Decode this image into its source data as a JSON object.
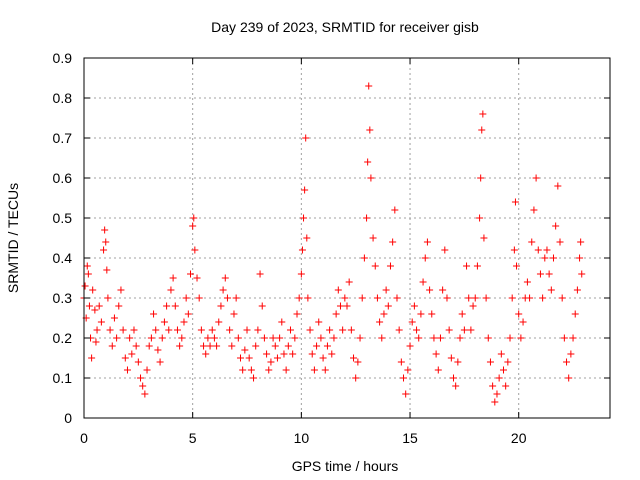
{
  "chart_data": {
    "type": "scatter",
    "title": "Day 239 of 2023, SRMTID for receiver gisb",
    "xlabel": "GPS time / hours",
    "ylabel": "SRMTID / TECUs",
    "xlim": [
      0,
      24.2
    ],
    "ylim": [
      0,
      0.9
    ],
    "x_ticks": [
      0,
      5,
      10,
      15,
      20
    ],
    "x_tick_labels": [
      "0",
      "5",
      "10",
      "15",
      "20"
    ],
    "y_ticks": [
      0,
      0.1,
      0.2,
      0.3,
      0.4,
      0.5,
      0.6,
      0.7,
      0.8,
      0.9
    ],
    "y_tick_labels": [
      "0",
      "0.1",
      "0.2",
      "0.3",
      "0.4",
      "0.5",
      "0.6",
      "0.7",
      "0.8",
      "0.9"
    ],
    "grid": true,
    "marker": "+",
    "marker_color": "#ff0000",
    "series": [
      {
        "name": "SRMTID",
        "color": "#ff0000",
        "points": [
          [
            0.0,
            0.3
          ],
          [
            0.05,
            0.33
          ],
          [
            0.1,
            0.25
          ],
          [
            0.15,
            0.38
          ],
          [
            0.2,
            0.36
          ],
          [
            0.25,
            0.28
          ],
          [
            0.3,
            0.2
          ],
          [
            0.35,
            0.15
          ],
          [
            0.4,
            0.32
          ],
          [
            0.5,
            0.27
          ],
          [
            0.55,
            0.19
          ],
          [
            0.6,
            0.22
          ],
          [
            0.7,
            0.28
          ],
          [
            0.8,
            0.24
          ],
          [
            0.9,
            0.42
          ],
          [
            0.95,
            0.47
          ],
          [
            1.0,
            0.44
          ],
          [
            1.05,
            0.37
          ],
          [
            1.1,
            0.3
          ],
          [
            1.2,
            0.22
          ],
          [
            1.3,
            0.18
          ],
          [
            1.4,
            0.25
          ],
          [
            1.5,
            0.2
          ],
          [
            1.6,
            0.28
          ],
          [
            1.7,
            0.32
          ],
          [
            1.8,
            0.22
          ],
          [
            1.9,
            0.15
          ],
          [
            2.0,
            0.12
          ],
          [
            2.1,
            0.2
          ],
          [
            2.2,
            0.16
          ],
          [
            2.3,
            0.22
          ],
          [
            2.4,
            0.18
          ],
          [
            2.5,
            0.14
          ],
          [
            2.6,
            0.1
          ],
          [
            2.7,
            0.08
          ],
          [
            2.8,
            0.06
          ],
          [
            2.9,
            0.12
          ],
          [
            3.0,
            0.18
          ],
          [
            3.1,
            0.2
          ],
          [
            3.2,
            0.26
          ],
          [
            3.3,
            0.22
          ],
          [
            3.4,
            0.17
          ],
          [
            3.5,
            0.14
          ],
          [
            3.6,
            0.2
          ],
          [
            3.7,
            0.24
          ],
          [
            3.8,
            0.28
          ],
          [
            3.9,
            0.22
          ],
          [
            4.0,
            0.32
          ],
          [
            4.1,
            0.35
          ],
          [
            4.2,
            0.28
          ],
          [
            4.3,
            0.22
          ],
          [
            4.4,
            0.18
          ],
          [
            4.5,
            0.2
          ],
          [
            4.6,
            0.24
          ],
          [
            4.7,
            0.3
          ],
          [
            4.8,
            0.26
          ],
          [
            4.9,
            0.36
          ],
          [
            5.0,
            0.48
          ],
          [
            5.05,
            0.5
          ],
          [
            5.1,
            0.42
          ],
          [
            5.2,
            0.35
          ],
          [
            5.3,
            0.3
          ],
          [
            5.4,
            0.22
          ],
          [
            5.5,
            0.18
          ],
          [
            5.6,
            0.16
          ],
          [
            5.7,
            0.2
          ],
          [
            5.8,
            0.18
          ],
          [
            5.9,
            0.22
          ],
          [
            6.0,
            0.2
          ],
          [
            6.1,
            0.18
          ],
          [
            6.2,
            0.24
          ],
          [
            6.3,
            0.28
          ],
          [
            6.4,
            0.32
          ],
          [
            6.5,
            0.35
          ],
          [
            6.6,
            0.3
          ],
          [
            6.7,
            0.22
          ],
          [
            6.8,
            0.18
          ],
          [
            6.9,
            0.26
          ],
          [
            7.0,
            0.3
          ],
          [
            7.1,
            0.2
          ],
          [
            7.2,
            0.15
          ],
          [
            7.3,
            0.12
          ],
          [
            7.4,
            0.17
          ],
          [
            7.5,
            0.22
          ],
          [
            7.6,
            0.15
          ],
          [
            7.7,
            0.12
          ],
          [
            7.8,
            0.1
          ],
          [
            7.9,
            0.18
          ],
          [
            8.0,
            0.22
          ],
          [
            8.1,
            0.36
          ],
          [
            8.2,
            0.28
          ],
          [
            8.3,
            0.2
          ],
          [
            8.4,
            0.16
          ],
          [
            8.5,
            0.12
          ],
          [
            8.6,
            0.14
          ],
          [
            8.7,
            0.2
          ],
          [
            8.8,
            0.18
          ],
          [
            8.9,
            0.15
          ],
          [
            9.0,
            0.2
          ],
          [
            9.1,
            0.24
          ],
          [
            9.2,
            0.16
          ],
          [
            9.3,
            0.12
          ],
          [
            9.4,
            0.18
          ],
          [
            9.5,
            0.22
          ],
          [
            9.6,
            0.16
          ],
          [
            9.7,
            0.2
          ],
          [
            9.8,
            0.26
          ],
          [
            9.9,
            0.3
          ],
          [
            10.0,
            0.36
          ],
          [
            10.05,
            0.42
          ],
          [
            10.1,
            0.5
          ],
          [
            10.15,
            0.57
          ],
          [
            10.2,
            0.7
          ],
          [
            10.25,
            0.45
          ],
          [
            10.3,
            0.3
          ],
          [
            10.4,
            0.22
          ],
          [
            10.5,
            0.16
          ],
          [
            10.6,
            0.12
          ],
          [
            10.7,
            0.18
          ],
          [
            10.8,
            0.24
          ],
          [
            10.9,
            0.2
          ],
          [
            11.0,
            0.15
          ],
          [
            11.1,
            0.12
          ],
          [
            11.2,
            0.18
          ],
          [
            11.3,
            0.22
          ],
          [
            11.4,
            0.16
          ],
          [
            11.5,
            0.2
          ],
          [
            11.6,
            0.26
          ],
          [
            11.7,
            0.32
          ],
          [
            11.8,
            0.28
          ],
          [
            11.9,
            0.22
          ],
          [
            12.0,
            0.3
          ],
          [
            12.1,
            0.28
          ],
          [
            12.2,
            0.34
          ],
          [
            12.3,
            0.22
          ],
          [
            12.4,
            0.15
          ],
          [
            12.5,
            0.1
          ],
          [
            12.6,
            0.14
          ],
          [
            12.7,
            0.2
          ],
          [
            12.8,
            0.3
          ],
          [
            12.9,
            0.4
          ],
          [
            13.0,
            0.5
          ],
          [
            13.05,
            0.64
          ],
          [
            13.1,
            0.83
          ],
          [
            13.15,
            0.72
          ],
          [
            13.2,
            0.6
          ],
          [
            13.3,
            0.45
          ],
          [
            13.4,
            0.38
          ],
          [
            13.5,
            0.3
          ],
          [
            13.6,
            0.24
          ],
          [
            13.7,
            0.2
          ],
          [
            13.8,
            0.26
          ],
          [
            13.9,
            0.32
          ],
          [
            14.0,
            0.28
          ],
          [
            14.1,
            0.38
          ],
          [
            14.2,
            0.44
          ],
          [
            14.3,
            0.52
          ],
          [
            14.4,
            0.3
          ],
          [
            14.5,
            0.22
          ],
          [
            14.6,
            0.14
          ],
          [
            14.7,
            0.1
          ],
          [
            14.8,
            0.06
          ],
          [
            14.9,
            0.12
          ],
          [
            15.0,
            0.18
          ],
          [
            15.1,
            0.24
          ],
          [
            15.2,
            0.28
          ],
          [
            15.3,
            0.22
          ],
          [
            15.4,
            0.2
          ],
          [
            15.5,
            0.26
          ],
          [
            15.6,
            0.34
          ],
          [
            15.7,
            0.4
          ],
          [
            15.8,
            0.44
          ],
          [
            15.9,
            0.32
          ],
          [
            16.0,
            0.26
          ],
          [
            16.1,
            0.2
          ],
          [
            16.2,
            0.16
          ],
          [
            16.3,
            0.12
          ],
          [
            16.4,
            0.2
          ],
          [
            16.5,
            0.32
          ],
          [
            16.6,
            0.42
          ],
          [
            16.7,
            0.3
          ],
          [
            16.8,
            0.22
          ],
          [
            16.9,
            0.15
          ],
          [
            17.0,
            0.1
          ],
          [
            17.1,
            0.08
          ],
          [
            17.2,
            0.14
          ],
          [
            17.3,
            0.2
          ],
          [
            17.4,
            0.26
          ],
          [
            17.5,
            0.22
          ],
          [
            17.6,
            0.38
          ],
          [
            17.7,
            0.3
          ],
          [
            17.8,
            0.22
          ],
          [
            17.9,
            0.28
          ],
          [
            18.0,
            0.3
          ],
          [
            18.1,
            0.38
          ],
          [
            18.2,
            0.5
          ],
          [
            18.25,
            0.6
          ],
          [
            18.3,
            0.72
          ],
          [
            18.35,
            0.76
          ],
          [
            18.4,
            0.45
          ],
          [
            18.5,
            0.3
          ],
          [
            18.6,
            0.2
          ],
          [
            18.7,
            0.14
          ],
          [
            18.8,
            0.08
          ],
          [
            18.9,
            0.04
          ],
          [
            19.0,
            0.06
          ],
          [
            19.1,
            0.1
          ],
          [
            19.2,
            0.16
          ],
          [
            19.3,
            0.12
          ],
          [
            19.4,
            0.08
          ],
          [
            19.5,
            0.14
          ],
          [
            19.6,
            0.2
          ],
          [
            19.7,
            0.3
          ],
          [
            19.8,
            0.42
          ],
          [
            19.85,
            0.54
          ],
          [
            19.9,
            0.38
          ],
          [
            20.0,
            0.26
          ],
          [
            20.1,
            0.2
          ],
          [
            20.2,
            0.24
          ],
          [
            20.3,
            0.3
          ],
          [
            20.4,
            0.34
          ],
          [
            20.5,
            0.3
          ],
          [
            20.6,
            0.44
          ],
          [
            20.7,
            0.52
          ],
          [
            20.8,
            0.6
          ],
          [
            20.9,
            0.42
          ],
          [
            21.0,
            0.36
          ],
          [
            21.1,
            0.3
          ],
          [
            21.2,
            0.4
          ],
          [
            21.3,
            0.42
          ],
          [
            21.4,
            0.36
          ],
          [
            21.5,
            0.32
          ],
          [
            21.6,
            0.4
          ],
          [
            21.7,
            0.48
          ],
          [
            21.8,
            0.58
          ],
          [
            21.9,
            0.44
          ],
          [
            22.0,
            0.3
          ],
          [
            22.1,
            0.2
          ],
          [
            22.2,
            0.14
          ],
          [
            22.3,
            0.1
          ],
          [
            22.4,
            0.16
          ],
          [
            22.5,
            0.2
          ],
          [
            22.6,
            0.26
          ],
          [
            22.7,
            0.32
          ],
          [
            22.8,
            0.4
          ],
          [
            22.85,
            0.44
          ],
          [
            22.9,
            0.36
          ]
        ]
      }
    ]
  }
}
